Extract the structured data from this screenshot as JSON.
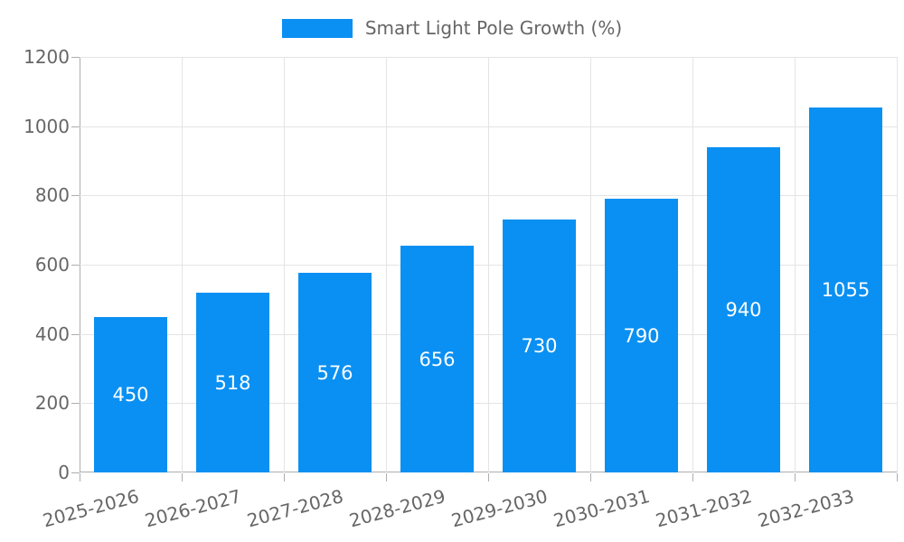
{
  "chart_data": {
    "type": "bar",
    "title": "Smart Light Pole Growth (%)",
    "legend_label": "Smart Light Pole Growth (%)",
    "legend_position": "top",
    "categories": [
      "2025-2026",
      "2026-2027",
      "2027-2028",
      "2028-2029",
      "2029-2030",
      "2030-2031",
      "2031-2032",
      "2032-2033"
    ],
    "series": [
      {
        "name": "Smart Light Pole Growth (%)",
        "values": [
          450,
          518,
          576,
          656,
          730,
          790,
          940,
          1055
        ]
      }
    ],
    "bar_labels": [
      "450",
      "518",
      "576",
      "656",
      "730",
      "790",
      "940",
      "1055"
    ],
    "xlabel": "",
    "ylabel": "",
    "ylim": [
      0,
      1200
    ],
    "yticks": [
      0,
      200,
      400,
      600,
      800,
      1000,
      1200
    ],
    "grid": true
  },
  "colors": {
    "bar": "#0a90f2",
    "grid": "#e4e4e4",
    "axis": "#adadad",
    "tick_label": "#666666",
    "legend_text": "#666666",
    "bar_label": "#ffffff",
    "background": "#ffffff"
  }
}
